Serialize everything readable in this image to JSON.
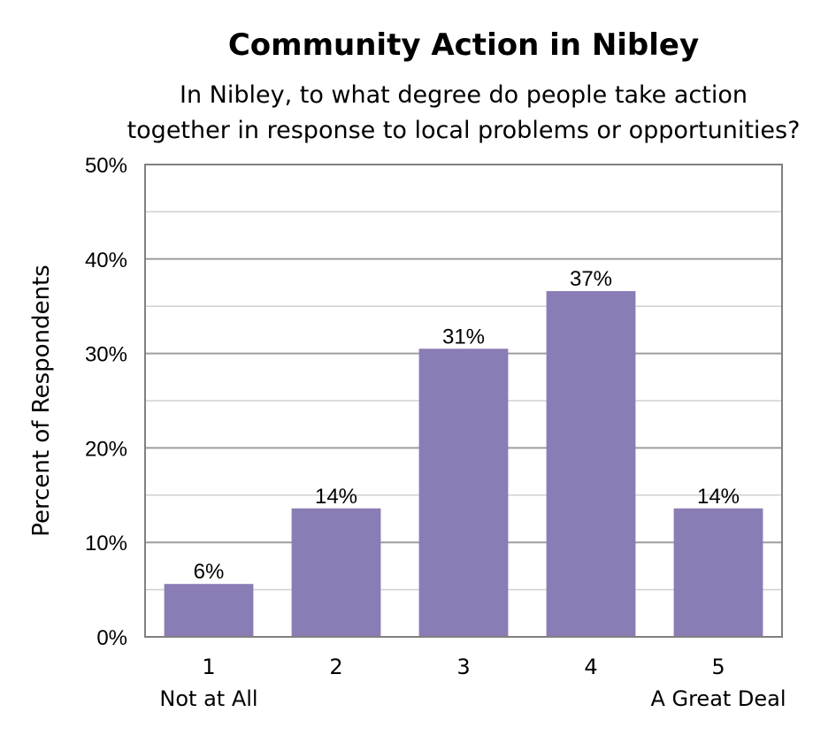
{
  "chart_data": {
    "type": "bar",
    "title": "Community Action in Nibley",
    "subtitle": [
      "In Nibley, to what degree do people take action",
      "together in response to local problems or opportunities?"
    ],
    "ylabel": "Percent of Respondents",
    "xlabel": "",
    "categories": [
      "1",
      "2",
      "3",
      "4",
      "5"
    ],
    "category_sublabels": [
      "Not at All",
      "",
      "",
      "",
      "A Great Deal"
    ],
    "values": [
      5.6,
      13.6,
      30.5,
      36.6,
      13.6
    ],
    "data_labels": [
      "6%",
      "14%",
      "31%",
      "37%",
      "14%"
    ],
    "ylim": [
      0,
      50
    ],
    "yticks": [
      0,
      10,
      20,
      30,
      40,
      50
    ],
    "ytick_labels": [
      "0%",
      "10%",
      "20%",
      "30%",
      "40%",
      "50%"
    ],
    "grid": true,
    "minor_grid": true,
    "legend": "none",
    "colors": {
      "bar": "#8a7cb5",
      "grid_major": "#9e9e9e",
      "grid_minor": "#d0d0d0",
      "axis": "#808080"
    }
  }
}
